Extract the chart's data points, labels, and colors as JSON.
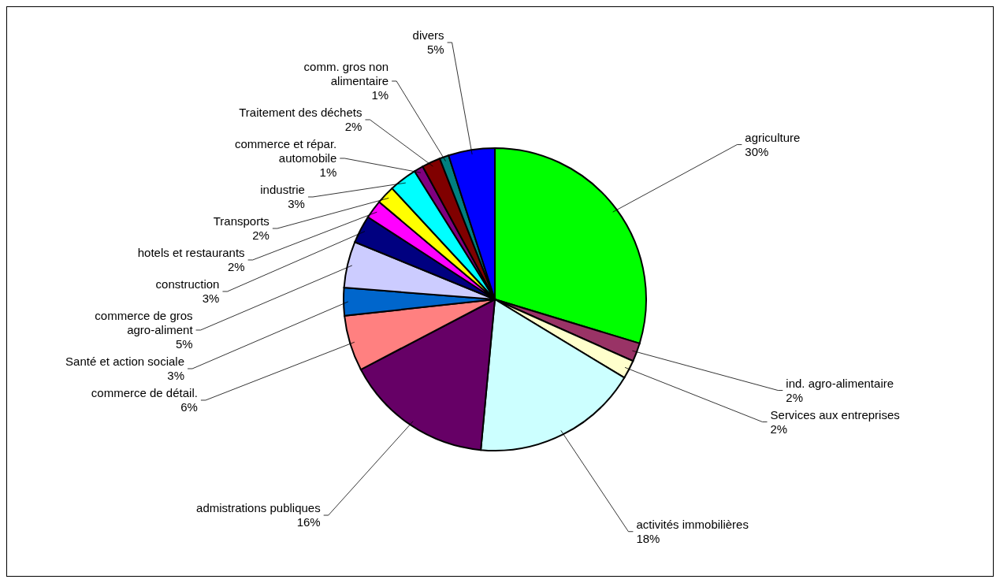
{
  "chart_data": {
    "type": "pie",
    "categories": [
      "agriculture",
      "ind. agro-alimentaire",
      "Services aux entreprises",
      "activités immobilières",
      "admistrations publiques",
      "commerce de détail.",
      "Santé et action sociale",
      "commerce de gros agro-aliment",
      "construction",
      "hotels et restaurants",
      "Transports",
      "industrie",
      "commerce et répar. automobile",
      "Traitement des déchets",
      "comm. gros non alimentaire",
      "divers"
    ],
    "values": [
      30,
      2,
      2,
      18,
      16,
      6,
      3,
      5,
      3,
      2,
      2,
      3,
      1,
      2,
      1,
      5
    ],
    "colors": [
      "#00ff00",
      "#993366",
      "#ffffcc",
      "#ccffff",
      "#660066",
      "#ff8080",
      "#0066cc",
      "#ccccff",
      "#000080",
      "#ff00ff",
      "#ffff00",
      "#00ffff",
      "#800080",
      "#800000",
      "#008080",
      "#0000ff"
    ],
    "value_labels": [
      "30%",
      "2%",
      "2%",
      "18%",
      "16%",
      "6%",
      "3%",
      "5%",
      "3%",
      "2%",
      "2%",
      "3%",
      "1%",
      "2%",
      "1%",
      "5%"
    ]
  }
}
